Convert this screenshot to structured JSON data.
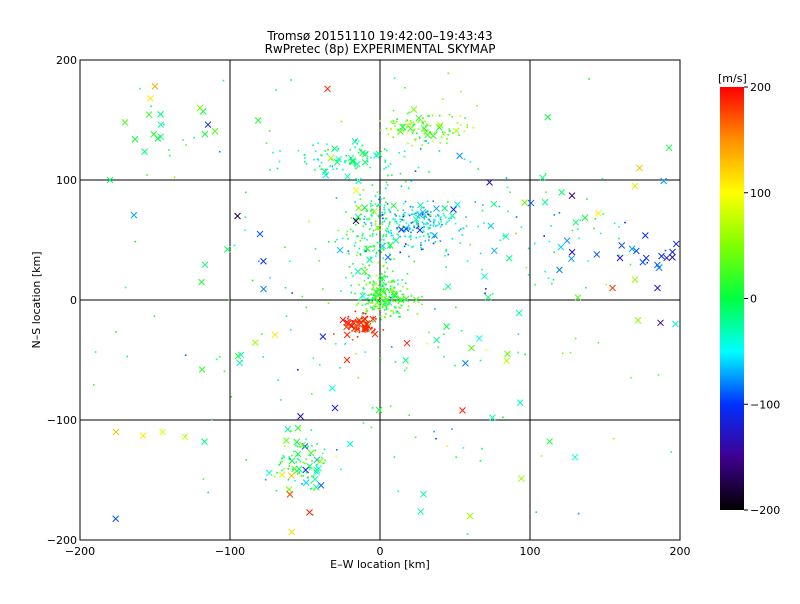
{
  "chart_data": {
    "type": "scatter",
    "title": "Tromsø 20151110 19:42:00–19:43:43",
    "subtitle": "RwPretec (8p) EXPERIMENTAL SKYMAP",
    "xlabel": "E–W location [km]",
    "ylabel": "N–S location [km]",
    "xlim": [
      -200,
      200
    ],
    "ylim": [
      -200,
      200
    ],
    "xticks": [
      -200,
      -100,
      0,
      100,
      200
    ],
    "yticks": [
      -200,
      -100,
      0,
      100,
      200
    ],
    "grid": true,
    "colorbar": {
      "label": "[m/s]",
      "range": [
        -200,
        200
      ],
      "ticks": [
        200,
        100,
        0,
        -100,
        -200
      ]
    },
    "markers": "x = strong echoes, dot = weak echoes; color = radial velocity (m/s)",
    "clusters": [
      {
        "center": [
          3,
          3
        ],
        "spread": [
          9,
          9
        ],
        "count": 240,
        "velocity": 20,
        "vspread": 25,
        "xfrac": 0.05
      },
      {
        "center": [
          25,
          63
        ],
        "spread": [
          14,
          10
        ],
        "count": 200,
        "velocity": -55,
        "vspread": 25,
        "xfrac": 0.08
      },
      {
        "center": [
          -5,
          55
        ],
        "spread": [
          9,
          22
        ],
        "count": 170,
        "velocity": 0,
        "vspread": 30,
        "xfrac": 0.06
      },
      {
        "center": [
          30,
          145
        ],
        "spread": [
          14,
          7
        ],
        "count": 120,
        "velocity": 40,
        "vspread": 25,
        "xfrac": 0.1
      },
      {
        "center": [
          -20,
          118
        ],
        "spread": [
          20,
          6
        ],
        "count": 90,
        "velocity": -20,
        "vspread": 20,
        "xfrac": 0.12
      },
      {
        "center": [
          -13,
          -21
        ],
        "spread": [
          6,
          4
        ],
        "count": 70,
        "velocity": 190,
        "vspread": 10,
        "xfrac": 0.35
      },
      {
        "center": [
          -50,
          -140
        ],
        "spread": [
          10,
          13
        ],
        "count": 100,
        "velocity": 10,
        "vspread": 50,
        "xfrac": 0.25
      },
      {
        "center": [
          -140,
          135
        ],
        "spread": [
          15,
          15
        ],
        "count": 18,
        "velocity": -5,
        "vspread": 25,
        "xfrac": 0.6
      },
      {
        "center": [
          180,
          38
        ],
        "spread": [
          12,
          6
        ],
        "count": 16,
        "velocity": -100,
        "vspread": 15,
        "xfrac": 0.7
      },
      {
        "center": [
          100,
          60
        ],
        "spread": [
          35,
          25
        ],
        "count": 60,
        "velocity": -30,
        "vspread": 40,
        "xfrac": 0.3
      },
      {
        "center": [
          0,
          0
        ],
        "spread": [
          95,
          95
        ],
        "count": 260,
        "velocity": -10,
        "vspread": 45,
        "xfrac": 0.25
      }
    ],
    "points": [
      {
        "x": -176,
        "y": -110,
        "v": 130,
        "m": "x"
      },
      {
        "x": -158,
        "y": -113,
        "v": 110,
        "m": "x"
      },
      {
        "x": -145,
        "y": -110,
        "v": 90,
        "m": "x"
      },
      {
        "x": -130,
        "y": -114,
        "v": 80,
        "m": "x"
      },
      {
        "x": -117,
        "y": -118,
        "v": -20,
        "m": "x"
      },
      {
        "x": -150,
        "y": 178,
        "v": 140,
        "m": "x"
      },
      {
        "x": -153,
        "y": 168,
        "v": 110,
        "m": "x"
      },
      {
        "x": -120,
        "y": 160,
        "v": 50,
        "m": "x"
      },
      {
        "x": -35,
        "y": 176,
        "v": 190,
        "m": "x"
      },
      {
        "x": -95,
        "y": 70,
        "v": -180,
        "m": "x"
      },
      {
        "x": -80,
        "y": 55,
        "v": -90,
        "m": "x"
      },
      {
        "x": -70,
        "y": -29,
        "v": 110,
        "m": "x"
      },
      {
        "x": -53,
        "y": -97,
        "v": -140,
        "m": "x"
      },
      {
        "x": -30,
        "y": -90,
        "v": -120,
        "m": "x"
      },
      {
        "x": -47,
        "y": -177,
        "v": 190,
        "m": "x"
      },
      {
        "x": -60,
        "y": -162,
        "v": 180,
        "m": "x"
      },
      {
        "x": 55,
        "y": -92,
        "v": 190,
        "m": "x"
      },
      {
        "x": 75,
        "y": -98,
        "v": -30,
        "m": "x"
      },
      {
        "x": 130,
        "y": -131,
        "v": -40,
        "m": "x"
      },
      {
        "x": 172,
        "y": -17,
        "v": 50,
        "m": "x"
      },
      {
        "x": 187,
        "y": -19,
        "v": -150,
        "m": "x"
      },
      {
        "x": 197,
        "y": -20,
        "v": -40,
        "m": "x"
      },
      {
        "x": 185,
        "y": 10,
        "v": -120,
        "m": "x"
      },
      {
        "x": 170,
        "y": 17,
        "v": 60,
        "m": "x"
      },
      {
        "x": 132,
        "y": 2,
        "v": 30,
        "m": "x"
      },
      {
        "x": 155,
        "y": 10,
        "v": 180,
        "m": "x"
      },
      {
        "x": 128,
        "y": 87,
        "v": -160,
        "m": "x"
      },
      {
        "x": 173,
        "y": 110,
        "v": 130,
        "m": "x"
      },
      {
        "x": 170,
        "y": 95,
        "v": 80,
        "m": "x"
      },
      {
        "x": 160,
        "y": 35,
        "v": -130,
        "m": "x"
      },
      {
        "x": 195,
        "y": 40,
        "v": -110,
        "m": "x"
      },
      {
        "x": -16,
        "y": 66,
        "v": -190,
        "m": "x"
      },
      {
        "x": 73,
        "y": 98,
        "v": -140,
        "m": "x"
      },
      {
        "x": -170,
        "y": 148,
        "v": 30,
        "m": "x"
      },
      {
        "x": -22,
        "y": -50,
        "v": 190,
        "m": "x"
      },
      {
        "x": 18,
        "y": -36,
        "v": 190,
        "m": "x"
      },
      {
        "x": -180,
        "y": 100,
        "v": -10,
        "m": "x"
      },
      {
        "x": 85,
        "y": -45,
        "v": 40,
        "m": "x"
      },
      {
        "x": 60,
        "y": -180,
        "v": 60,
        "m": "x"
      },
      {
        "x": -20,
        "y": -120,
        "v": -40,
        "m": "x"
      }
    ]
  }
}
